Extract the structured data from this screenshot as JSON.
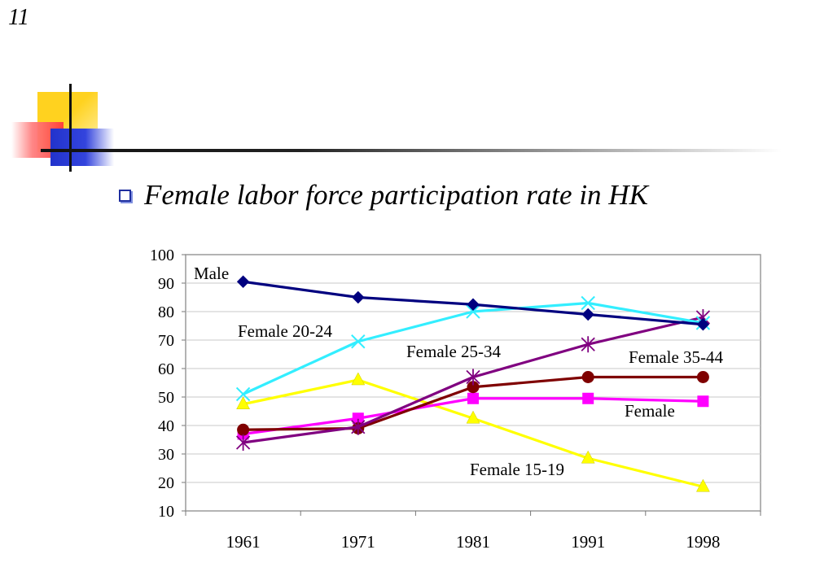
{
  "slide": {
    "number": "11",
    "bullet_text": "Female labor force participation rate in HK"
  },
  "colors": {
    "male": "#00007f",
    "female_20_24": "#33eeff",
    "female_25_34": "#800080",
    "female_35_44": "#7f0000",
    "female": "#ff00ff",
    "female_15_19": "#ffff00",
    "deco_yellow": "#ffd21f",
    "deco_red": "#ff3a3a",
    "deco_blue": "#2233cc"
  },
  "chart_data": {
    "type": "line",
    "categories": [
      "1961",
      "1971",
      "1981",
      "1991",
      "1998"
    ],
    "ylim": [
      10,
      100
    ],
    "yticks": [
      10,
      20,
      30,
      40,
      50,
      60,
      70,
      80,
      90,
      100
    ],
    "grid": true,
    "legend": "none",
    "series": [
      {
        "name": "Male",
        "marker": "diamond",
        "color": "#00007f",
        "values": [
          90.5,
          85,
          82.5,
          79,
          75.5
        ]
      },
      {
        "name": "Female 20-24",
        "marker": "x",
        "color": "#33eeff",
        "values": [
          51,
          69.5,
          80,
          83,
          76
        ]
      },
      {
        "name": "Female 25-34",
        "marker": "asterisk",
        "color": "#800080",
        "values": [
          34,
          39.5,
          57,
          68.5,
          78
        ]
      },
      {
        "name": "Female 35-44",
        "marker": "circle",
        "color": "#7f0000",
        "values": [
          38.5,
          39,
          53.5,
          57,
          57
        ]
      },
      {
        "name": "Female",
        "marker": "square",
        "color": "#ff00ff",
        "values": [
          37,
          42.5,
          49.5,
          49.5,
          48.5
        ]
      },
      {
        "name": "Female 15-19",
        "marker": "triangle",
        "color": "#ffff00",
        "values": [
          47.5,
          56,
          42.5,
          28.5,
          18.5
        ]
      }
    ]
  }
}
